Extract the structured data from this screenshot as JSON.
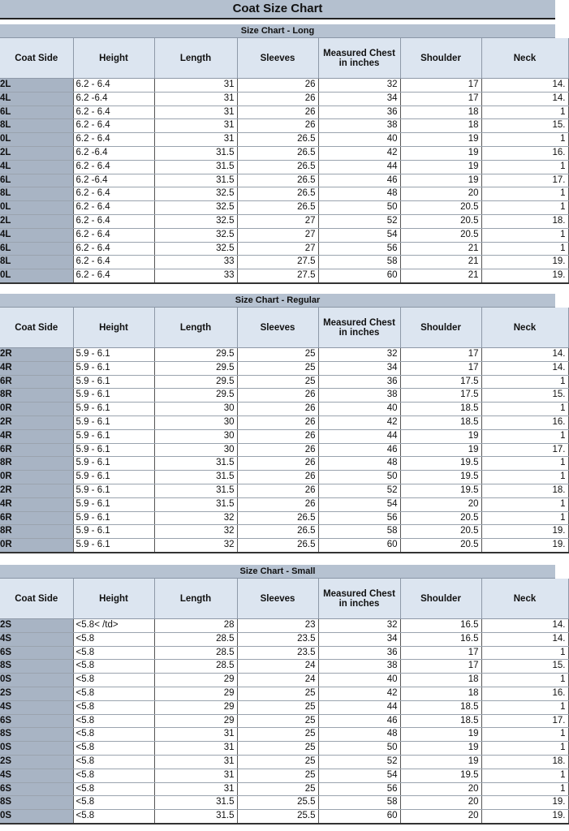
{
  "title": "Coat Size Chart",
  "columns": [
    "Coat Side",
    "Height",
    "Length",
    "Sleeves",
    "Measured Chest in inches",
    "Shoulder",
    "Neck"
  ],
  "tables": [
    {
      "heading": "Size Chart - Long",
      "rows": [
        [
          "2L",
          "6.2 - 6.4",
          "31",
          "26",
          "32",
          "17",
          "14."
        ],
        [
          "4L",
          "6.2 -6.4",
          "31",
          "26",
          "34",
          "17",
          "14."
        ],
        [
          "6L",
          "6.2 - 6.4",
          "31",
          "26",
          "36",
          "18",
          "1"
        ],
        [
          "8L",
          "6.2 - 6.4",
          "31",
          "26",
          "38",
          "18",
          "15."
        ],
        [
          "0L",
          "6.2 - 6.4",
          "31",
          "26.5",
          "40",
          "19",
          "1"
        ],
        [
          "2L",
          "6.2 -6.4",
          "31.5",
          "26.5",
          "42",
          "19",
          "16."
        ],
        [
          "4L",
          "6.2 - 6.4",
          "31.5",
          "26.5",
          "44",
          "19",
          "1"
        ],
        [
          "6L",
          "6.2 -6.4",
          "31.5",
          "26.5",
          "46",
          "19",
          "17."
        ],
        [
          "8L",
          "6.2 - 6.4",
          "32.5",
          "26.5",
          "48",
          "20",
          "1"
        ],
        [
          "0L",
          "6.2 - 6.4",
          "32.5",
          "26.5",
          "50",
          "20.5",
          "1"
        ],
        [
          "2L",
          "6.2 - 6.4",
          "32.5",
          "27",
          "52",
          "20.5",
          "18."
        ],
        [
          "4L",
          "6.2 - 6.4",
          "32.5",
          "27",
          "54",
          "20.5",
          "1"
        ],
        [
          "6L",
          "6.2 - 6.4",
          "32.5",
          "27",
          "56",
          "21",
          "1"
        ],
        [
          "8L",
          "6.2 - 6.4",
          "33",
          "27.5",
          "58",
          "21",
          "19."
        ],
        [
          "0L",
          "6.2 - 6.4",
          "33",
          "27.5",
          "60",
          "21",
          "19."
        ]
      ]
    },
    {
      "heading": "Size Chart - Regular",
      "rows": [
        [
          "2R",
          "5.9 - 6.1",
          "29.5",
          "25",
          "32",
          "17",
          "14."
        ],
        [
          "4R",
          "5.9 - 6.1",
          "29.5",
          "25",
          "34",
          "17",
          "14."
        ],
        [
          "6R",
          "5.9 - 6.1",
          "29.5",
          "25",
          "36",
          "17.5",
          "1"
        ],
        [
          "8R",
          "5.9 - 6.1",
          "29.5",
          "26",
          "38",
          "17.5",
          "15."
        ],
        [
          "0R",
          "5.9 - 6.1",
          "30",
          "26",
          "40",
          "18.5",
          "1"
        ],
        [
          "2R",
          "5.9 - 6.1",
          "30",
          "26",
          "42",
          "18.5",
          "16."
        ],
        [
          "4R",
          "5.9 - 6.1",
          "30",
          "26",
          "44",
          "19",
          "1"
        ],
        [
          "6R",
          "5.9 - 6.1",
          "30",
          "26",
          "46",
          "19",
          "17."
        ],
        [
          "8R",
          "5.9 - 6.1",
          "31.5",
          "26",
          "48",
          "19.5",
          "1"
        ],
        [
          "0R",
          "5.9 - 6.1",
          "31.5",
          "26",
          "50",
          "19.5",
          "1"
        ],
        [
          "2R",
          "5.9 - 6.1",
          "31.5",
          "26",
          "52",
          "19.5",
          "18."
        ],
        [
          "4R",
          "5.9 - 6.1",
          "31.5",
          "26",
          "54",
          "20",
          "1"
        ],
        [
          "6R",
          "5.9 - 6.1",
          "32",
          "26.5",
          "56",
          "20.5",
          "1"
        ],
        [
          "8R",
          "5.9 - 6.1",
          "32",
          "26.5",
          "58",
          "20.5",
          "19."
        ],
        [
          "0R",
          "5.9 - 6.1",
          "32",
          "26.5",
          "60",
          "20.5",
          "19."
        ]
      ]
    },
    {
      "heading": "Size Chart - Small",
      "rows": [
        [
          "2S",
          "<5.8< /td>",
          "28",
          "23",
          "32",
          "16.5",
          "14."
        ],
        [
          "4S",
          "<5.8",
          "28.5",
          "23.5",
          "34",
          "16.5",
          "14."
        ],
        [
          "6S",
          "<5.8",
          "28.5",
          "23.5",
          "36",
          "17",
          "1"
        ],
        [
          "8S",
          "<5.8",
          "28.5",
          "24",
          "38",
          "17",
          "15."
        ],
        [
          "0S",
          "<5.8",
          "29",
          "24",
          "40",
          "18",
          "1"
        ],
        [
          "2S",
          "<5.8",
          "29",
          "25",
          "42",
          "18",
          "16."
        ],
        [
          "4S",
          "<5.8",
          "29",
          "25",
          "44",
          "18.5",
          "1"
        ],
        [
          "6S",
          "<5.8",
          "29",
          "25",
          "46",
          "18.5",
          "17."
        ],
        [
          "8S",
          "<5.8",
          "31",
          "25",
          "48",
          "19",
          "1"
        ],
        [
          "0S",
          "<5.8",
          "31",
          "25",
          "50",
          "19",
          "1"
        ],
        [
          "2S",
          "<5.8",
          "31",
          "25",
          "52",
          "19",
          "18."
        ],
        [
          "4S",
          "<5.8",
          "31",
          "25",
          "54",
          "19.5",
          "1"
        ],
        [
          "6S",
          "<5.8",
          "31",
          "25",
          "56",
          "20",
          "1"
        ],
        [
          "8S",
          "<5.8",
          "31.5",
          "25.5",
          "58",
          "20",
          "19."
        ],
        [
          "0S",
          "<5.8",
          "31.5",
          "25.5",
          "60",
          "20",
          "19."
        ]
      ]
    }
  ]
}
